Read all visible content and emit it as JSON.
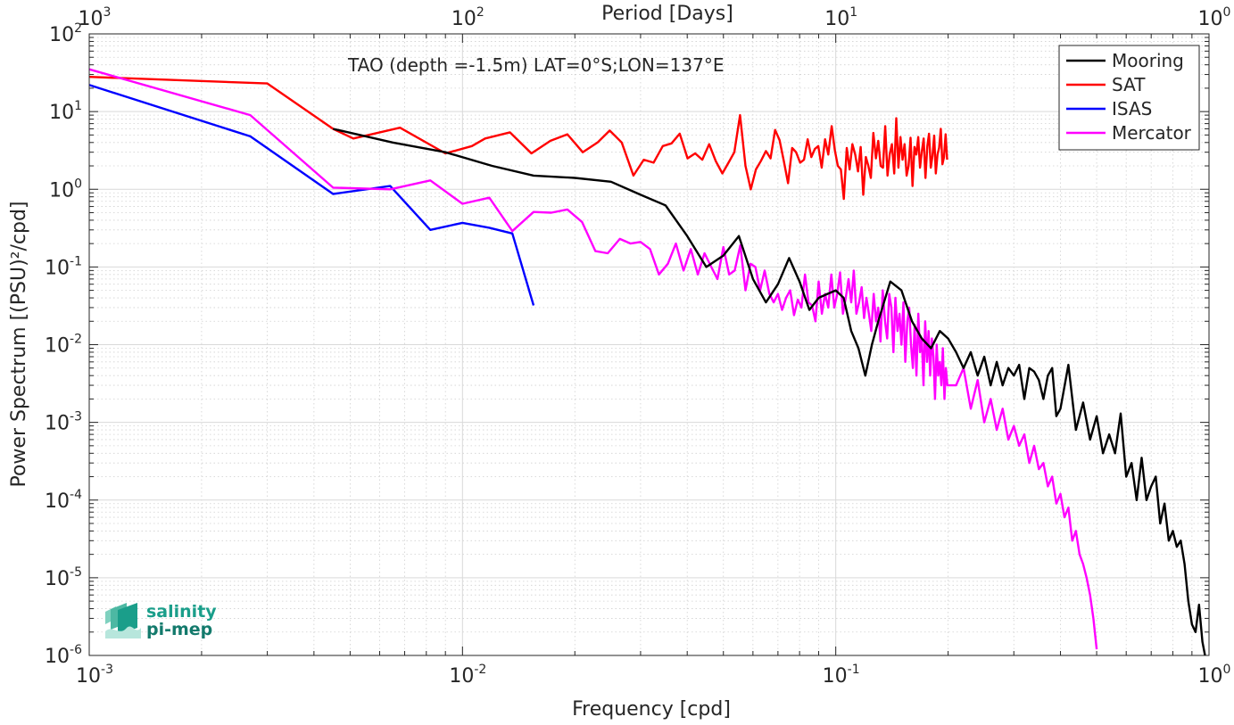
{
  "chart_data": {
    "type": "line",
    "title": "TAO (depth =-1.5m) LAT=0°S;LON=137°E",
    "xlabel": "Frequency [cpd]",
    "ylabel": "Power Spectrum [(PSU)²/cpd]",
    "top_xlabel": "Period [Days]",
    "x_scale": "log",
    "y_scale": "log",
    "xlim": [
      0.001,
      1
    ],
    "ylim": [
      1e-06,
      100
    ],
    "top_xlim": [
      1000,
      1
    ],
    "grid": true,
    "legend_position": "top-right",
    "x_ticks": [
      0.001,
      0.01,
      0.1,
      1
    ],
    "x_tick_labels": [
      {
        "base": "10",
        "exp": "-3"
      },
      {
        "base": "10",
        "exp": "-2"
      },
      {
        "base": "10",
        "exp": "-1"
      },
      {
        "base": "10",
        "exp": "0"
      }
    ],
    "top_ticks": [
      1000,
      100,
      10,
      1
    ],
    "top_tick_labels": [
      {
        "base": "10",
        "exp": "3"
      },
      {
        "base": "10",
        "exp": "2"
      },
      {
        "base": "10",
        "exp": "1"
      },
      {
        "base": "10",
        "exp": "0"
      }
    ],
    "y_ticks": [
      1e-06,
      1e-05,
      0.0001,
      0.001,
      0.01,
      0.1,
      1,
      10,
      100
    ],
    "y_tick_labels": [
      {
        "base": "10",
        "exp": "-6"
      },
      {
        "base": "10",
        "exp": "-5"
      },
      {
        "base": "10",
        "exp": "-4"
      },
      {
        "base": "10",
        "exp": "-3"
      },
      {
        "base": "10",
        "exp": "-2"
      },
      {
        "base": "10",
        "exp": "-1"
      },
      {
        "base": "10",
        "exp": "0"
      },
      {
        "base": "10",
        "exp": "1"
      },
      {
        "base": "10",
        "exp": "2"
      }
    ],
    "series": [
      {
        "name": "Mooring",
        "color": "#000000",
        "x": [
          0.0045,
          0.0065,
          0.009,
          0.012,
          0.0155,
          0.02,
          0.025,
          0.03,
          0.035,
          0.04,
          0.045,
          0.05,
          0.055,
          0.06,
          0.065,
          0.07,
          0.075,
          0.08,
          0.085,
          0.09,
          0.095,
          0.1,
          0.105,
          0.11,
          0.115,
          0.12,
          0.125,
          0.13,
          0.14,
          0.15,
          0.16,
          0.17,
          0.18,
          0.19,
          0.2,
          0.21,
          0.22,
          0.23,
          0.24,
          0.25,
          0.26,
          0.27,
          0.28,
          0.29,
          0.3,
          0.31,
          0.32,
          0.33,
          0.34,
          0.35,
          0.36,
          0.37,
          0.38,
          0.39,
          0.4,
          0.42,
          0.44,
          0.46,
          0.48,
          0.5,
          0.52,
          0.54,
          0.56,
          0.58,
          0.6,
          0.62,
          0.64,
          0.66,
          0.68,
          0.7,
          0.72,
          0.74,
          0.76,
          0.78,
          0.8,
          0.82,
          0.84,
          0.86,
          0.88,
          0.9,
          0.92,
          0.94,
          0.96,
          0.98
        ],
        "values": [
          6.0,
          4.0,
          3.0,
          2.0,
          1.5,
          1.4,
          1.25,
          0.85,
          0.62,
          0.25,
          0.1,
          0.14,
          0.25,
          0.07,
          0.035,
          0.06,
          0.13,
          0.065,
          0.028,
          0.04,
          0.045,
          0.05,
          0.04,
          0.015,
          0.009,
          0.004,
          0.01,
          0.02,
          0.065,
          0.05,
          0.02,
          0.012,
          0.009,
          0.015,
          0.012,
          0.008,
          0.005,
          0.008,
          0.004,
          0.007,
          0.003,
          0.006,
          0.003,
          0.005,
          0.004,
          0.0055,
          0.002,
          0.005,
          0.0045,
          0.0035,
          0.002,
          0.004,
          0.005,
          0.0012,
          0.0015,
          0.0055,
          0.0008,
          0.0018,
          0.0006,
          0.0012,
          0.0004,
          0.0007,
          0.0004,
          0.0013,
          0.0002,
          0.0003,
          0.0001,
          0.00035,
          0.0001,
          0.00015,
          0.0002,
          5e-05,
          9e-05,
          3e-05,
          4e-05,
          2.5e-05,
          3e-05,
          1.5e-05,
          5e-06,
          2.5e-06,
          2e-06,
          4.5e-06,
          1.5e-06,
          9e-07
        ]
      },
      {
        "name": "SAT",
        "color": "#ff0000",
        "x": [
          0.001,
          0.003,
          0.0045,
          0.0051,
          0.0068,
          0.009,
          0.0106,
          0.0115,
          0.0134,
          0.0153,
          0.0172,
          0.0191,
          0.021,
          0.023,
          0.0248,
          0.0267,
          0.0287,
          0.0306,
          0.0325,
          0.0344,
          0.0363,
          0.0382,
          0.0401,
          0.042,
          0.0439,
          0.0458,
          0.0477,
          0.0497,
          0.0516,
          0.0535,
          0.0554,
          0.0573,
          0.0592,
          0.0611,
          0.063,
          0.065,
          0.0669,
          0.0688,
          0.0707,
          0.0726,
          0.0745,
          0.0764,
          0.0783,
          0.0803,
          0.0822,
          0.0841,
          0.086,
          0.0879,
          0.0898,
          0.0917,
          0.0936,
          0.0955,
          0.0975,
          0.0994,
          0.1013,
          0.1032,
          0.1051,
          0.107,
          0.1089,
          0.1108,
          0.1128,
          0.1147,
          0.1166,
          0.1185,
          0.1204,
          0.1223,
          0.1242,
          0.1261,
          0.1281,
          0.13,
          0.1319,
          0.1338,
          0.1357,
          0.1376,
          0.1395,
          0.1414,
          0.1434,
          0.1453,
          0.1472,
          0.1491,
          0.151,
          0.1529,
          0.1548,
          0.1567,
          0.1586,
          0.1606,
          0.1625,
          0.1644,
          0.1663,
          0.1682,
          0.1701,
          0.172,
          0.1739,
          0.1759,
          0.1778,
          0.1797,
          0.1816,
          0.1835,
          0.1854,
          0.1873,
          0.1892,
          0.1912,
          0.1931,
          0.195,
          0.1969,
          0.1988
        ],
        "values": [
          28,
          23,
          6.0,
          4.5,
          6.2,
          2.9,
          3.6,
          4.5,
          5.4,
          2.9,
          4.2,
          5.1,
          3.0,
          4.0,
          5.7,
          4.0,
          1.5,
          2.4,
          2.2,
          3.6,
          3.9,
          5.2,
          2.5,
          2.9,
          2.4,
          3.8,
          2.3,
          1.6,
          2.2,
          3.0,
          9.0,
          2.0,
          1.0,
          1.8,
          2.3,
          3.1,
          2.5,
          5.8,
          4.3,
          2.3,
          1.2,
          3.4,
          3.0,
          2.2,
          2.4,
          4.4,
          2.6,
          3.3,
          3.6,
          1.9,
          4.4,
          2.8,
          6.5,
          3.2,
          2.0,
          1.8,
          0.75,
          3.4,
          1.8,
          3.8,
          2.8,
          1.7,
          3.5,
          0.85,
          2.6,
          2.0,
          1.4,
          5.3,
          2.5,
          4.2,
          2.0,
          1.9,
          6.5,
          1.5,
          2.8,
          3.8,
          1.6,
          8.2,
          1.9,
          4.7,
          2.4,
          3.8,
          1.5,
          2.0,
          4.6,
          1.1,
          3.5,
          2.8,
          4.7,
          1.9,
          3.1,
          4.5,
          1.4,
          3.6,
          5.2,
          1.9,
          2.7,
          4.9,
          1.6,
          2.8,
          3.4,
          6.0,
          2.1,
          2.6,
          5.1,
          2.4
        ]
      },
      {
        "name": "ISAS",
        "color": "#0000ff",
        "x": [
          0.001,
          0.0027,
          0.0045,
          0.0064,
          0.0082,
          0.01,
          0.0118,
          0.0136,
          0.0155
        ],
        "values": [
          22,
          4.8,
          0.87,
          1.1,
          0.3,
          0.37,
          0.32,
          0.27,
          0.032
        ]
      },
      {
        "name": "Mercator",
        "color": "#ff00ff",
        "x": [
          0.001,
          0.0027,
          0.0045,
          0.0064,
          0.0082,
          0.01,
          0.0118,
          0.0136,
          0.0155,
          0.0173,
          0.0191,
          0.0209,
          0.0227,
          0.0245,
          0.0264,
          0.0282,
          0.03,
          0.0318,
          0.0336,
          0.0355,
          0.0373,
          0.0391,
          0.0409,
          0.0427,
          0.0445,
          0.0464,
          0.0482,
          0.05,
          0.0518,
          0.0536,
          0.0555,
          0.0573,
          0.0591,
          0.0609,
          0.0627,
          0.0645,
          0.0664,
          0.0682,
          0.07,
          0.0718,
          0.0736,
          0.0755,
          0.0773,
          0.0791,
          0.0809,
          0.0827,
          0.0845,
          0.0864,
          0.0882,
          0.09,
          0.0918,
          0.0936,
          0.0955,
          0.0973,
          0.0991,
          0.1009,
          0.1027,
          0.1045,
          0.1064,
          0.1082,
          0.11,
          0.1118,
          0.1136,
          0.1155,
          0.1173,
          0.1191,
          0.1209,
          0.1227,
          0.1245,
          0.1264,
          0.1282,
          0.13,
          0.1318,
          0.1336,
          0.1355,
          0.1373,
          0.1391,
          0.1409,
          0.1427,
          0.1445,
          0.1464,
          0.1482,
          0.15,
          0.1518,
          0.1536,
          0.1555,
          0.1573,
          0.1591,
          0.1609,
          0.1627,
          0.1645,
          0.1664,
          0.1682,
          0.17,
          0.1718,
          0.1736,
          0.1755,
          0.1773,
          0.1791,
          0.1809,
          0.1827,
          0.1845,
          0.1864,
          0.1882,
          0.19,
          0.1918,
          0.1936,
          0.1955,
          0.1973,
          0.1991,
          0.21,
          0.22,
          0.23,
          0.24,
          0.25,
          0.26,
          0.27,
          0.28,
          0.29,
          0.3,
          0.31,
          0.32,
          0.33,
          0.34,
          0.35,
          0.36,
          0.37,
          0.38,
          0.39,
          0.4,
          0.41,
          0.42,
          0.43,
          0.44,
          0.45,
          0.46,
          0.47,
          0.48,
          0.49,
          0.5
        ],
        "values": [
          35,
          9.0,
          1.05,
          1.0,
          1.3,
          0.65,
          0.78,
          0.29,
          0.51,
          0.5,
          0.55,
          0.38,
          0.16,
          0.15,
          0.23,
          0.2,
          0.21,
          0.17,
          0.08,
          0.11,
          0.2,
          0.09,
          0.17,
          0.08,
          0.15,
          0.1,
          0.07,
          0.18,
          0.08,
          0.09,
          0.19,
          0.05,
          0.11,
          0.1,
          0.05,
          0.09,
          0.045,
          0.035,
          0.045,
          0.028,
          0.04,
          0.05,
          0.024,
          0.038,
          0.03,
          0.08,
          0.035,
          0.032,
          0.02,
          0.065,
          0.025,
          0.045,
          0.03,
          0.08,
          0.03,
          0.045,
          0.085,
          0.025,
          0.04,
          0.07,
          0.035,
          0.09,
          0.025,
          0.035,
          0.055,
          0.022,
          0.04,
          0.025,
          0.015,
          0.045,
          0.02,
          0.03,
          0.011,
          0.05,
          0.02,
          0.012,
          0.045,
          0.03,
          0.008,
          0.04,
          0.015,
          0.025,
          0.01,
          0.035,
          0.006,
          0.02,
          0.03,
          0.01,
          0.005,
          0.018,
          0.004,
          0.025,
          0.008,
          0.012,
          0.003,
          0.02,
          0.006,
          0.015,
          0.004,
          0.012,
          0.007,
          0.002,
          0.01,
          0.004,
          0.006,
          0.003,
          0.009,
          0.002,
          0.005,
          0.003,
          0.003,
          0.005,
          0.0015,
          0.0035,
          0.001,
          0.002,
          0.0008,
          0.0015,
          0.0006,
          0.0009,
          0.0005,
          0.0007,
          0.0003,
          0.0005,
          0.00025,
          0.0003,
          0.00015,
          0.0002,
          9e-05,
          0.00012,
          6e-05,
          8e-05,
          3e-05,
          4e-05,
          2e-05,
          1.5e-05,
          1e-05,
          6e-06,
          3e-06,
          1.2e-06
        ]
      }
    ]
  },
  "logo": {
    "line1": "salinity",
    "line2": "pi-mep",
    "color": "#1a9e8a"
  }
}
